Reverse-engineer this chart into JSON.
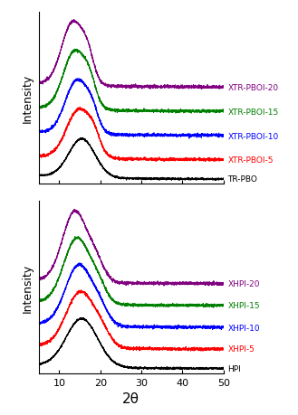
{
  "x_range": [
    5,
    50
  ],
  "x_ticks": [
    10,
    20,
    30,
    40,
    50
  ],
  "xlabel": "2θ",
  "ylabel": "Intensity",
  "top_labels": [
    "TR-PBO",
    "XTR-PBOI-5",
    "XTR-PBOI-10",
    "XTR-PBOI-15",
    "XTR-PBOI-20"
  ],
  "bottom_labels": [
    "HPI",
    "XHPI-5",
    "XHPI-10",
    "XHPI-15",
    "XHPI-20"
  ],
  "colors": [
    "#000000",
    "#ff0000",
    "#0000ff",
    "#008000",
    "#800080"
  ],
  "label_fontsize": 6.5,
  "axis_fontsize": 9,
  "tick_fontsize": 8,
  "xlabel_fontsize": 11
}
